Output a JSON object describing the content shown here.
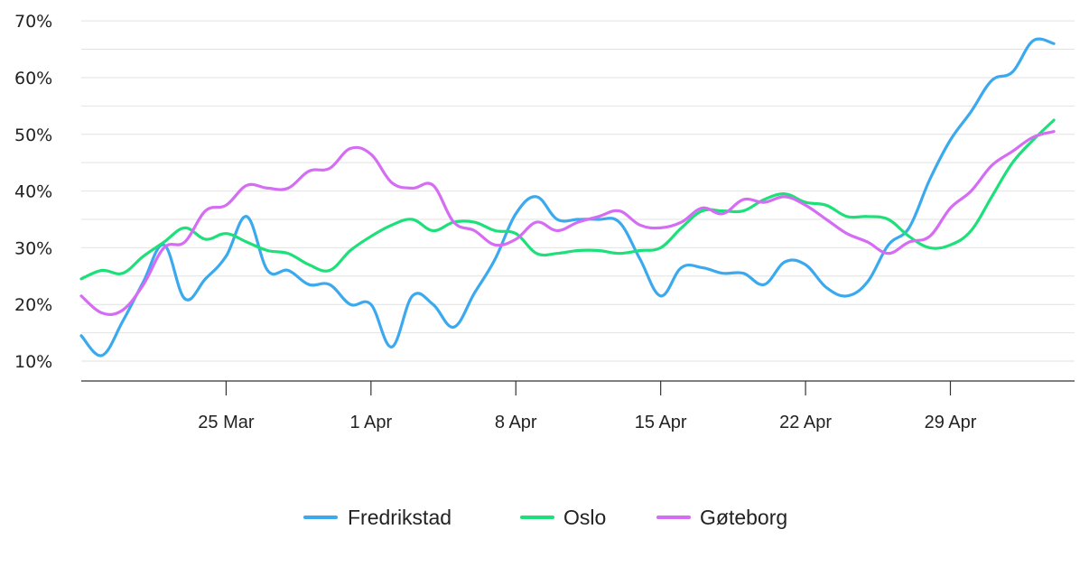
{
  "chart_data": {
    "type": "line",
    "x_start": "2020-03-18",
    "x_end": "2020-05-05",
    "x_ticks": [
      {
        "date": "2020-03-25",
        "label": "25 Mar"
      },
      {
        "date": "2020-04-01",
        "label": "1 Apr"
      },
      {
        "date": "2020-04-08",
        "label": "8 Apr"
      },
      {
        "date": "2020-04-15",
        "label": "15 Apr"
      },
      {
        "date": "2020-04-22",
        "label": "22 Apr"
      },
      {
        "date": "2020-04-29",
        "label": "29 Apr"
      }
    ],
    "y_ticks": [
      {
        "value": 10,
        "label": "10%"
      },
      {
        "value": 20,
        "label": "20%"
      },
      {
        "value": 30,
        "label": "30%"
      },
      {
        "value": 40,
        "label": "40%"
      },
      {
        "value": 50,
        "label": "50%"
      },
      {
        "value": 60,
        "label": "60%"
      },
      {
        "value": 70,
        "label": "70%"
      }
    ],
    "ylim": [
      6.5,
      70.5
    ],
    "grid": true,
    "legend_position": "bottom-center",
    "series": [
      {
        "name": "Fredrikstad",
        "color": "#3ba9ee",
        "points": [
          [
            "2020-03-18",
            14.5
          ],
          [
            "2020-03-19",
            11
          ],
          [
            "2020-03-20",
            17
          ],
          [
            "2020-03-21",
            24
          ],
          [
            "2020-03-22",
            30.5
          ],
          [
            "2020-03-23",
            21
          ],
          [
            "2020-03-24",
            24.5
          ],
          [
            "2020-03-25",
            28.5
          ],
          [
            "2020-03-26",
            35.5
          ],
          [
            "2020-03-27",
            26
          ],
          [
            "2020-03-28",
            26
          ],
          [
            "2020-03-29",
            23.5
          ],
          [
            "2020-03-30",
            23.5
          ],
          [
            "2020-03-31",
            20
          ],
          [
            "2020-04-01",
            20
          ],
          [
            "2020-04-02",
            12.5
          ],
          [
            "2020-04-03",
            21.5
          ],
          [
            "2020-04-04",
            20
          ],
          [
            "2020-04-05",
            16
          ],
          [
            "2020-04-06",
            22
          ],
          [
            "2020-04-07",
            28
          ],
          [
            "2020-04-08",
            36
          ],
          [
            "2020-04-09",
            39
          ],
          [
            "2020-04-10",
            35
          ],
          [
            "2020-04-11",
            35
          ],
          [
            "2020-04-12",
            35
          ],
          [
            "2020-04-13",
            34.5
          ],
          [
            "2020-04-14",
            28
          ],
          [
            "2020-04-15",
            21.5
          ],
          [
            "2020-04-16",
            26.5
          ],
          [
            "2020-04-17",
            26.5
          ],
          [
            "2020-04-18",
            25.5
          ],
          [
            "2020-04-19",
            25.5
          ],
          [
            "2020-04-20",
            23.5
          ],
          [
            "2020-04-21",
            27.5
          ],
          [
            "2020-04-22",
            27
          ],
          [
            "2020-04-23",
            23
          ],
          [
            "2020-04-24",
            21.5
          ],
          [
            "2020-04-25",
            24
          ],
          [
            "2020-04-26",
            30.5
          ],
          [
            "2020-04-27",
            33.5
          ],
          [
            "2020-04-28",
            42
          ],
          [
            "2020-04-29",
            49
          ],
          [
            "2020-04-30",
            54
          ],
          [
            "2020-05-01",
            59.5
          ],
          [
            "2020-05-02",
            61
          ],
          [
            "2020-05-03",
            66.5
          ],
          [
            "2020-05-04",
            66
          ]
        ]
      },
      {
        "name": "Oslo",
        "color": "#1ee07a",
        "points": [
          [
            "2020-03-18",
            24.5
          ],
          [
            "2020-03-19",
            26
          ],
          [
            "2020-03-20",
            25.5
          ],
          [
            "2020-03-21",
            28.5
          ],
          [
            "2020-03-22",
            31
          ],
          [
            "2020-03-23",
            33.5
          ],
          [
            "2020-03-24",
            31.5
          ],
          [
            "2020-03-25",
            32.5
          ],
          [
            "2020-03-26",
            31
          ],
          [
            "2020-03-27",
            29.5
          ],
          [
            "2020-03-28",
            29
          ],
          [
            "2020-03-29",
            27
          ],
          [
            "2020-03-30",
            26
          ],
          [
            "2020-03-31",
            29.5
          ],
          [
            "2020-04-01",
            32
          ],
          [
            "2020-04-02",
            34
          ],
          [
            "2020-04-03",
            35
          ],
          [
            "2020-04-04",
            33
          ],
          [
            "2020-04-05",
            34.5
          ],
          [
            "2020-04-06",
            34.5
          ],
          [
            "2020-04-07",
            33
          ],
          [
            "2020-04-08",
            32.5
          ],
          [
            "2020-04-09",
            29
          ],
          [
            "2020-04-10",
            29
          ],
          [
            "2020-04-11",
            29.5
          ],
          [
            "2020-04-12",
            29.5
          ],
          [
            "2020-04-13",
            29
          ],
          [
            "2020-04-14",
            29.5
          ],
          [
            "2020-04-15",
            30
          ],
          [
            "2020-04-16",
            33.5
          ],
          [
            "2020-04-17",
            36.5
          ],
          [
            "2020-04-18",
            36.5
          ],
          [
            "2020-04-19",
            36.5
          ],
          [
            "2020-04-20",
            38.5
          ],
          [
            "2020-04-21",
            39.5
          ],
          [
            "2020-04-22",
            38
          ],
          [
            "2020-04-23",
            37.5
          ],
          [
            "2020-04-24",
            35.5
          ],
          [
            "2020-04-25",
            35.5
          ],
          [
            "2020-04-26",
            35
          ],
          [
            "2020-04-27",
            32
          ],
          [
            "2020-04-28",
            30
          ],
          [
            "2020-04-29",
            30.5
          ],
          [
            "2020-04-30",
            33
          ],
          [
            "2020-05-01",
            39
          ],
          [
            "2020-05-02",
            45
          ],
          [
            "2020-05-03",
            49
          ],
          [
            "2020-05-04",
            52.5
          ]
        ]
      },
      {
        "name": "Gøteborg",
        "color": "#d56cf4",
        "points": [
          [
            "2020-03-18",
            21.5
          ],
          [
            "2020-03-19",
            18.5
          ],
          [
            "2020-03-20",
            19
          ],
          [
            "2020-03-21",
            23.5
          ],
          [
            "2020-03-22",
            30
          ],
          [
            "2020-03-23",
            31
          ],
          [
            "2020-03-24",
            36.5
          ],
          [
            "2020-03-25",
            37.5
          ],
          [
            "2020-03-26",
            41
          ],
          [
            "2020-03-27",
            40.5
          ],
          [
            "2020-03-28",
            40.5
          ],
          [
            "2020-03-29",
            43.5
          ],
          [
            "2020-03-30",
            44
          ],
          [
            "2020-03-31",
            47.5
          ],
          [
            "2020-04-01",
            46.5
          ],
          [
            "2020-04-02",
            41.5
          ],
          [
            "2020-04-03",
            40.5
          ],
          [
            "2020-04-04",
            41
          ],
          [
            "2020-04-05",
            34.5
          ],
          [
            "2020-04-06",
            33
          ],
          [
            "2020-04-07",
            30.5
          ],
          [
            "2020-04-08",
            31.5
          ],
          [
            "2020-04-09",
            34.5
          ],
          [
            "2020-04-10",
            33
          ],
          [
            "2020-04-11",
            34.5
          ],
          [
            "2020-04-12",
            35.5
          ],
          [
            "2020-04-13",
            36.5
          ],
          [
            "2020-04-14",
            34
          ],
          [
            "2020-04-15",
            33.5
          ],
          [
            "2020-04-16",
            34.5
          ],
          [
            "2020-04-17",
            37
          ],
          [
            "2020-04-18",
            36
          ],
          [
            "2020-04-19",
            38.5
          ],
          [
            "2020-04-20",
            38
          ],
          [
            "2020-04-21",
            39
          ],
          [
            "2020-04-22",
            37.5
          ],
          [
            "2020-04-23",
            35
          ],
          [
            "2020-04-24",
            32.5
          ],
          [
            "2020-04-25",
            31
          ],
          [
            "2020-04-26",
            29
          ],
          [
            "2020-04-27",
            31
          ],
          [
            "2020-04-28",
            32
          ],
          [
            "2020-04-29",
            37
          ],
          [
            "2020-04-30",
            40
          ],
          [
            "2020-05-01",
            44.5
          ],
          [
            "2020-05-02",
            47
          ],
          [
            "2020-05-03",
            49.5
          ],
          [
            "2020-05-04",
            50.5
          ]
        ]
      }
    ]
  }
}
